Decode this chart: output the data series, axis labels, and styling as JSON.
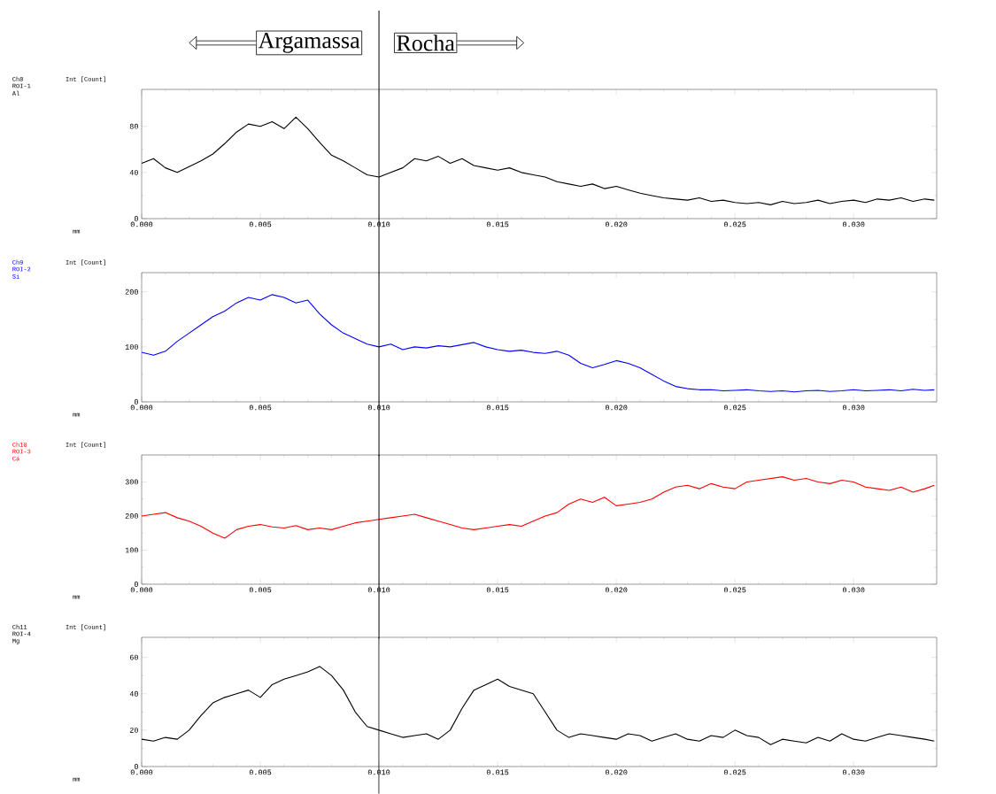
{
  "chart_data": [
    {
      "type": "line",
      "ylabel": "Int [Count]",
      "annotations": [
        "Ch8",
        "ROI-1",
        "mm",
        "Argamassa",
        "Rocha"
      ],
      "ref_lines": [
        {
          "axis": "x",
          "value": 0.01,
          "color": "#000000"
        }
      ],
      "xlim": [
        0,
        0.0335
      ],
      "ylim": [
        0,
        112
      ],
      "xticks": [
        {
          "value": 0,
          "label": "0.000"
        },
        {
          "value": 0.005,
          "label": "0.005"
        },
        {
          "value": 0.01,
          "label": "0.010"
        },
        {
          "value": 0.015,
          "label": "0.015"
        },
        {
          "value": 0.02,
          "label": "0.020"
        },
        {
          "value": 0.025,
          "label": "0.025"
        },
        {
          "value": 0.03,
          "label": "0.030"
        }
      ],
      "yticks": [
        0,
        40,
        80
      ],
      "x": [
        0,
        0.0005,
        0.001,
        0.0015,
        0.002,
        0.0025,
        0.003,
        0.0035,
        0.004,
        0.0045,
        0.005,
        0.0055,
        0.006,
        0.0065,
        0.007,
        0.0075,
        0.008,
        0.0085,
        0.009,
        0.0095,
        0.01,
        0.0105,
        0.011,
        0.0115,
        0.012,
        0.0125,
        0.013,
        0.0135,
        0.014,
        0.0145,
        0.015,
        0.0155,
        0.016,
        0.0165,
        0.017,
        0.0175,
        0.018,
        0.0185,
        0.019,
        0.0195,
        0.02,
        0.0205,
        0.021,
        0.0215,
        0.022,
        0.0225,
        0.023,
        0.0235,
        0.024,
        0.0245,
        0.025,
        0.0255,
        0.026,
        0.0265,
        0.027,
        0.0275,
        0.028,
        0.0285,
        0.029,
        0.0295,
        0.03,
        0.0305,
        0.031,
        0.0315,
        0.032,
        0.0325,
        0.033,
        0.0334
      ],
      "series": [
        {
          "name": "Al",
          "color": "#000000",
          "values": [
            48,
            52,
            44,
            40,
            45,
            50,
            56,
            65,
            75,
            82,
            80,
            84,
            78,
            88,
            78,
            66,
            55,
            50,
            44,
            38,
            36,
            40,
            44,
            52,
            50,
            54,
            48,
            52,
            46,
            44,
            42,
            44,
            40,
            38,
            36,
            32,
            30,
            28,
            30,
            26,
            28,
            25,
            22,
            20,
            18,
            17,
            16,
            18,
            15,
            16,
            14,
            13,
            14,
            12,
            15,
            13,
            14,
            16,
            13,
            15,
            16,
            14,
            17,
            16,
            18,
            15,
            17,
            16
          ]
        }
      ]
    },
    {
      "type": "line",
      "ylabel": "Int [Count]",
      "annotations": [
        "Ch9",
        "ROI-2",
        "mm"
      ],
      "ref_lines": [
        {
          "axis": "x",
          "value": 0.01,
          "color": "#000000"
        }
      ],
      "xlim": [
        0,
        0.0335
      ],
      "ylim": [
        0,
        235
      ],
      "xticks": [
        {
          "value": 0,
          "label": "0.000"
        },
        {
          "value": 0.005,
          "label": "0.005"
        },
        {
          "value": 0.01,
          "label": "0.010"
        },
        {
          "value": 0.015,
          "label": "0.015"
        },
        {
          "value": 0.02,
          "label": "0.020"
        },
        {
          "value": 0.025,
          "label": "0.025"
        },
        {
          "value": 0.03,
          "label": "0.030"
        }
      ],
      "yticks": [
        0,
        100,
        200
      ],
      "x": [
        0,
        0.0005,
        0.001,
        0.0015,
        0.002,
        0.0025,
        0.003,
        0.0035,
        0.004,
        0.0045,
        0.005,
        0.0055,
        0.006,
        0.0065,
        0.007,
        0.0075,
        0.008,
        0.0085,
        0.009,
        0.0095,
        0.01,
        0.0105,
        0.011,
        0.0115,
        0.012,
        0.0125,
        0.013,
        0.0135,
        0.014,
        0.0145,
        0.015,
        0.0155,
        0.016,
        0.0165,
        0.017,
        0.0175,
        0.018,
        0.0185,
        0.019,
        0.0195,
        0.02,
        0.0205,
        0.021,
        0.0215,
        0.022,
        0.0225,
        0.023,
        0.0235,
        0.024,
        0.0245,
        0.025,
        0.0255,
        0.026,
        0.0265,
        0.027,
        0.0275,
        0.028,
        0.0285,
        0.029,
        0.0295,
        0.03,
        0.0305,
        0.031,
        0.0315,
        0.032,
        0.0325,
        0.033,
        0.0334
      ],
      "series": [
        {
          "name": "Si",
          "color": "#0000ff",
          "values": [
            90,
            85,
            92,
            110,
            125,
            140,
            155,
            165,
            180,
            190,
            185,
            195,
            190,
            180,
            185,
            160,
            140,
            125,
            115,
            105,
            100,
            105,
            95,
            100,
            98,
            102,
            100,
            104,
            108,
            100,
            95,
            92,
            94,
            90,
            88,
            92,
            85,
            70,
            62,
            68,
            75,
            70,
            62,
            50,
            38,
            28,
            24,
            22,
            22,
            20,
            21,
            22,
            20,
            19,
            20,
            18,
            20,
            21,
            19,
            20,
            22,
            20,
            21,
            22,
            20,
            23,
            21,
            22
          ]
        }
      ]
    },
    {
      "type": "line",
      "ylabel": "Int [Count]",
      "annotations": [
        "Ch10",
        "ROI-3",
        "mm"
      ],
      "ref_lines": [
        {
          "axis": "x",
          "value": 0.01,
          "color": "#000000"
        }
      ],
      "xlim": [
        0,
        0.0335
      ],
      "ylim": [
        0,
        379
      ],
      "xticks": [
        {
          "value": 0,
          "label": "0.000"
        },
        {
          "value": 0.005,
          "label": "0.005"
        },
        {
          "value": 0.01,
          "label": "0.010"
        },
        {
          "value": 0.015,
          "label": "0.015"
        },
        {
          "value": 0.02,
          "label": "0.020"
        },
        {
          "value": 0.025,
          "label": "0.025"
        },
        {
          "value": 0.03,
          "label": "0.030"
        }
      ],
      "yticks": [
        0,
        100,
        200,
        300
      ],
      "x": [
        0,
        0.0005,
        0.001,
        0.0015,
        0.002,
        0.0025,
        0.003,
        0.0035,
        0.004,
        0.0045,
        0.005,
        0.0055,
        0.006,
        0.0065,
        0.007,
        0.0075,
        0.008,
        0.0085,
        0.009,
        0.0095,
        0.01,
        0.0105,
        0.011,
        0.0115,
        0.012,
        0.0125,
        0.013,
        0.0135,
        0.014,
        0.0145,
        0.015,
        0.0155,
        0.016,
        0.0165,
        0.017,
        0.0175,
        0.018,
        0.0185,
        0.019,
        0.0195,
        0.02,
        0.0205,
        0.021,
        0.0215,
        0.022,
        0.0225,
        0.023,
        0.0235,
        0.024,
        0.0245,
        0.025,
        0.0255,
        0.026,
        0.0265,
        0.027,
        0.0275,
        0.028,
        0.0285,
        0.029,
        0.0295,
        0.03,
        0.0305,
        0.031,
        0.0315,
        0.032,
        0.0325,
        0.033,
        0.0334
      ],
      "series": [
        {
          "name": "Ca",
          "color": "#ff0000",
          "values": [
            200,
            205,
            210,
            195,
            185,
            170,
            150,
            135,
            160,
            170,
            175,
            168,
            165,
            172,
            160,
            165,
            160,
            170,
            180,
            185,
            190,
            195,
            200,
            205,
            195,
            185,
            175,
            165,
            160,
            165,
            170,
            175,
            170,
            185,
            200,
            210,
            235,
            250,
            240,
            255,
            230,
            235,
            240,
            250,
            270,
            285,
            290,
            280,
            295,
            285,
            280,
            300,
            305,
            310,
            315,
            305,
            310,
            300,
            295,
            305,
            300,
            285,
            280,
            275,
            285,
            270,
            280,
            290
          ]
        }
      ]
    },
    {
      "type": "line",
      "ylabel": "Int [Count]",
      "annotations": [
        "Ch11",
        "ROI-4",
        "mm"
      ],
      "ref_lines": [
        {
          "axis": "x",
          "value": 0.01,
          "color": "#000000"
        }
      ],
      "xlim": [
        0,
        0.0335
      ],
      "ylim": [
        0,
        71
      ],
      "xticks": [
        {
          "value": 0,
          "label": "0.000"
        },
        {
          "value": 0.005,
          "label": "0.005"
        },
        {
          "value": 0.01,
          "label": "0.010"
        },
        {
          "value": 0.015,
          "label": "0.015"
        },
        {
          "value": 0.02,
          "label": "0.020"
        },
        {
          "value": 0.025,
          "label": "0.025"
        },
        {
          "value": 0.03,
          "label": "0.030"
        }
      ],
      "yticks": [
        0,
        20,
        40,
        60
      ],
      "x": [
        0,
        0.0005,
        0.001,
        0.0015,
        0.002,
        0.0025,
        0.003,
        0.0035,
        0.004,
        0.0045,
        0.005,
        0.0055,
        0.006,
        0.0065,
        0.007,
        0.0075,
        0.008,
        0.0085,
        0.009,
        0.0095,
        0.01,
        0.0105,
        0.011,
        0.0115,
        0.012,
        0.0125,
        0.013,
        0.0135,
        0.014,
        0.0145,
        0.015,
        0.0155,
        0.016,
        0.0165,
        0.017,
        0.0175,
        0.018,
        0.0185,
        0.019,
        0.0195,
        0.02,
        0.0205,
        0.021,
        0.0215,
        0.022,
        0.0225,
        0.023,
        0.0235,
        0.024,
        0.0245,
        0.025,
        0.0255,
        0.026,
        0.0265,
        0.027,
        0.0275,
        0.028,
        0.0285,
        0.029,
        0.0295,
        0.03,
        0.0305,
        0.031,
        0.0315,
        0.032,
        0.0325,
        0.033,
        0.0334
      ],
      "series": [
        {
          "name": "Mg",
          "color": "#000000",
          "values": [
            15,
            14,
            16,
            15,
            20,
            28,
            35,
            38,
            40,
            42,
            38,
            45,
            48,
            50,
            52,
            55,
            50,
            42,
            30,
            22,
            20,
            18,
            16,
            17,
            18,
            15,
            20,
            32,
            42,
            45,
            48,
            44,
            42,
            40,
            30,
            20,
            16,
            18,
            17,
            16,
            15,
            18,
            17,
            14,
            16,
            18,
            15,
            14,
            17,
            16,
            20,
            17,
            16,
            12,
            15,
            14,
            13,
            16,
            14,
            18,
            15,
            14,
            16,
            18,
            17,
            16,
            15,
            14
          ]
        }
      ]
    }
  ]
}
